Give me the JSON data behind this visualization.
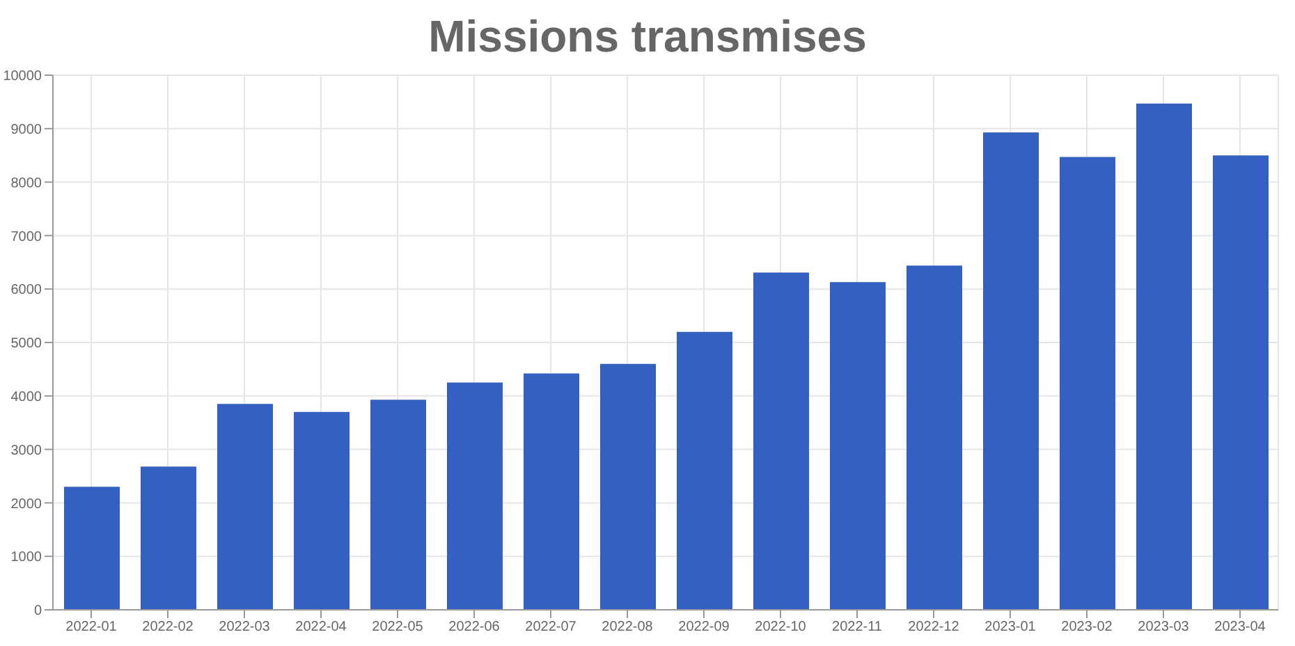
{
  "chart_data": {
    "type": "bar",
    "title": "Missions transmises",
    "categories": [
      "2022-01",
      "2022-02",
      "2022-03",
      "2022-04",
      "2022-05",
      "2022-06",
      "2022-07",
      "2022-08",
      "2022-09",
      "2022-10",
      "2022-11",
      "2022-12",
      "2023-01",
      "2023-02",
      "2023-03",
      "2023-04"
    ],
    "values": [
      2300,
      2680,
      3850,
      3700,
      3930,
      4250,
      4420,
      4600,
      5200,
      6310,
      6130,
      6440,
      8930,
      8470,
      9470,
      8500
    ],
    "color": "#3461c1",
    "ylim": [
      0,
      10000
    ],
    "yticks": [
      0,
      1000,
      2000,
      3000,
      4000,
      5000,
      6000,
      7000,
      8000,
      9000,
      10000
    ],
    "grid": true
  }
}
